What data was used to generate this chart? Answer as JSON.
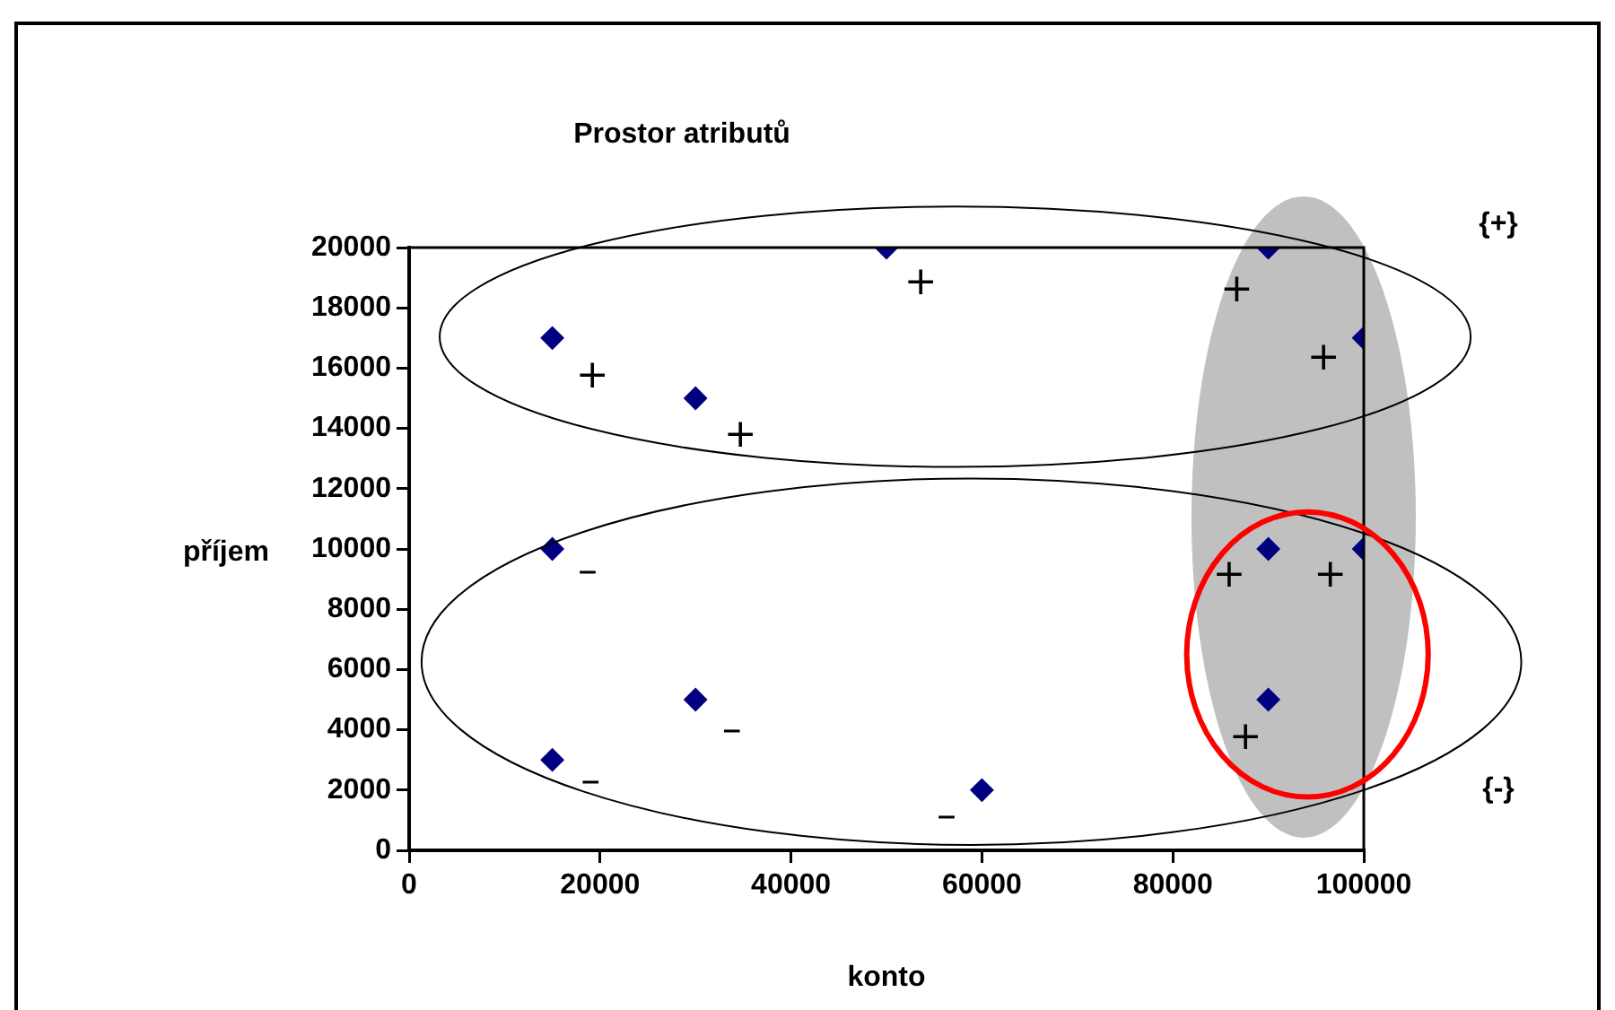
{
  "chart_data": {
    "type": "scatter",
    "title": "Prostor atributů",
    "xlabel": "konto",
    "ylabel": "příjem",
    "x": [
      15000,
      30000,
      50000,
      90000,
      100000,
      15000,
      90000,
      100000,
      30000,
      90000,
      15000,
      60000
    ],
    "series": [
      {
        "color": "#000080",
        "values": [
          17000,
          15000,
          20000,
          20000,
          17000,
          10000,
          10000,
          10000,
          5000,
          5000,
          3000,
          2000
        ]
      }
    ],
    "marker": "diamond",
    "xlim": [
      0,
      100000
    ],
    "xticks": [
      0,
      20000,
      40000,
      60000,
      80000,
      100000
    ],
    "ylim": [
      0,
      20000
    ],
    "yticks": [
      0,
      2000,
      4000,
      6000,
      8000,
      10000,
      12000,
      14000,
      16000,
      18000,
      20000
    ],
    "annotations": [
      "+",
      "+",
      "+",
      "+",
      "+",
      "+",
      "+",
      "+",
      "–",
      "–",
      "–",
      "–",
      "{+}",
      "{-}"
    ]
  }
}
